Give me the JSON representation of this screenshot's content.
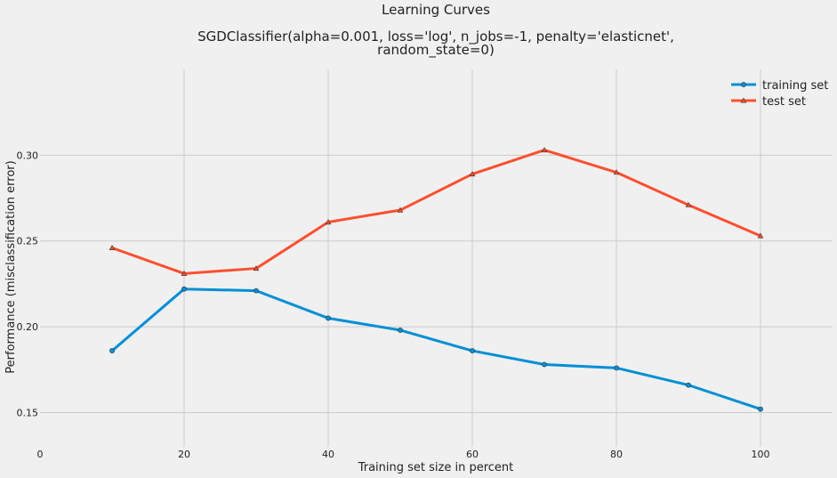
{
  "chart_data": {
    "type": "line",
    "title": "Learning Curves",
    "subtitle_lines": [
      "SGDClassifier(alpha=0.001, loss='log', n_jobs=-1, penalty='elasticnet',",
      "random_state=0)"
    ],
    "xlabel": "Training set size in percent",
    "ylabel": "Performance (misclassification error)",
    "xlim": [
      0,
      110
    ],
    "ylim": [
      0.13,
      0.35
    ],
    "xticks": [
      0,
      20,
      40,
      60,
      80,
      100
    ],
    "xtick_labels": [
      "0",
      "20",
      "40",
      "60",
      "80",
      "100"
    ],
    "yticks": [
      0.15,
      0.2,
      0.25,
      0.3
    ],
    "ytick_labels": [
      "0.15",
      "0.20",
      "0.25",
      "0.30"
    ],
    "grid": true,
    "legend_position": "top-right",
    "x": [
      10,
      20,
      30,
      40,
      50,
      60,
      70,
      80,
      90,
      100
    ],
    "series": [
      {
        "name": "training set",
        "color": "#008fd5",
        "marker": "circle",
        "values": [
          0.186,
          0.222,
          0.221,
          0.205,
          0.198,
          0.186,
          0.178,
          0.176,
          0.166,
          0.152
        ]
      },
      {
        "name": "test set",
        "color": "#fc4f30",
        "marker": "triangle",
        "values": [
          0.246,
          0.231,
          0.234,
          0.261,
          0.268,
          0.289,
          0.303,
          0.29,
          0.271,
          0.253
        ]
      }
    ]
  }
}
